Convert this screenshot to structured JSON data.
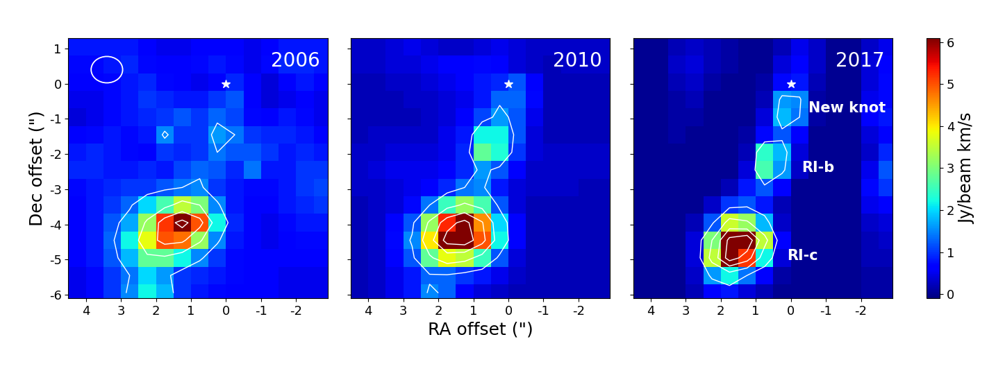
{
  "chart_data": [
    {
      "type": "heatmap",
      "title": "2006",
      "ylabel": "Dec offset (\")",
      "xlim": [
        4.5,
        -2.9
      ],
      "ylim": [
        -6.1,
        1.3
      ],
      "xticks": [
        4,
        3,
        2,
        1,
        0,
        -1,
        -2
      ],
      "yticks": [
        -6,
        -5,
        -4,
        -3,
        -2,
        -1,
        0,
        1
      ],
      "x": [
        4.25,
        3.75,
        3.25,
        2.75,
        2.25,
        1.75,
        1.25,
        0.75,
        0.25,
        -0.25,
        -0.75,
        -1.25,
        -1.75,
        -2.25,
        -2.75
      ],
      "y": [
        1.05,
        0.55,
        0.05,
        -0.45,
        -0.95,
        -1.45,
        -1.95,
        -2.45,
        -2.95,
        -3.45,
        -3.95,
        -4.45,
        -4.95,
        -5.45,
        -5.95
      ],
      "cells": [
        [
          0.8,
          0.8,
          0.8,
          0.8,
          0.6,
          0.5,
          0.5,
          0.6,
          0.6,
          0.6,
          0.5,
          0.6,
          0.8,
          0.8,
          0.8
        ],
        [
          0.7,
          0.7,
          0.8,
          0.9,
          0.7,
          0.6,
          0.6,
          0.7,
          0.8,
          0.7,
          0.5,
          0.7,
          0.9,
          0.9,
          0.8
        ],
        [
          0.6,
          0.6,
          0.7,
          0.8,
          0.9,
          0.7,
          0.6,
          0.5,
          0.6,
          0.9,
          0.6,
          0.4,
          0.6,
          0.8,
          0.6
        ],
        [
          0.5,
          0.5,
          0.7,
          0.8,
          1.0,
          0.9,
          0.8,
          0.8,
          1.0,
          1.2,
          0.6,
          0.4,
          0.5,
          0.6,
          0.5
        ],
        [
          0.4,
          0.5,
          0.7,
          0.8,
          0.9,
          1.0,
          1.2,
          1.0,
          1.3,
          1.1,
          0.7,
          0.6,
          0.8,
          0.7,
          0.5
        ],
        [
          0.6,
          0.7,
          0.8,
          0.7,
          0.8,
          1.5,
          1.0,
          1.0,
          1.6,
          1.4,
          1.0,
          0.9,
          0.9,
          0.8,
          0.6
        ],
        [
          0.8,
          0.9,
          0.8,
          0.7,
          0.6,
          1.0,
          0.9,
          1.0,
          1.4,
          1.2,
          1.2,
          1.0,
          0.8,
          0.9,
          0.8
        ],
        [
          0.9,
          0.9,
          0.8,
          0.8,
          0.9,
          0.8,
          1.1,
          1.3,
          1.2,
          0.9,
          1.4,
          0.8,
          0.8,
          1.0,
          1.0
        ],
        [
          0.7,
          0.8,
          0.9,
          1.0,
          1.0,
          1.2,
          1.4,
          1.5,
          1.0,
          0.8,
          0.7,
          0.7,
          0.8,
          1.0,
          1.1
        ],
        [
          0.6,
          0.8,
          1.0,
          1.3,
          2.0,
          2.6,
          3.5,
          3.0,
          1.5,
          0.8,
          0.6,
          0.6,
          0.8,
          0.9,
          1.0
        ],
        [
          0.6,
          0.8,
          1.2,
          1.7,
          3.2,
          5.2,
          6.2,
          5.0,
          2.2,
          0.9,
          0.6,
          0.5,
          0.7,
          0.8,
          0.8
        ],
        [
          0.6,
          0.8,
          1.3,
          2.2,
          3.8,
          5.0,
          4.8,
          3.2,
          1.5,
          0.8,
          0.6,
          0.5,
          0.6,
          0.7,
          0.7
        ],
        [
          0.6,
          0.8,
          1.2,
          1.8,
          2.8,
          2.8,
          2.2,
          1.5,
          1.0,
          0.7,
          0.6,
          0.6,
          0.6,
          0.6,
          0.6
        ],
        [
          0.5,
          0.7,
          1.0,
          1.4,
          2.0,
          1.6,
          1.0,
          0.9,
          0.8,
          0.7,
          0.6,
          0.6,
          0.5,
          0.5,
          0.5
        ],
        [
          0.5,
          0.7,
          1.0,
          1.5,
          2.2,
          1.8,
          1.0,
          0.8,
          0.7,
          0.6,
          0.6,
          0.6,
          0.5,
          0.5,
          0.5
        ]
      ],
      "contour_levels": [
        1.4,
        3,
        4.5,
        5.8
      ],
      "source_position": {
        "x": 0,
        "y": 0
      },
      "beam": {
        "x": 3.4,
        "y": 0.4,
        "width": 0.9,
        "height": 0.75
      }
    },
    {
      "type": "heatmap",
      "title": "2010",
      "xlabel": "RA offset (\")",
      "tick_labels": "x",
      "xlim": [
        4.5,
        -2.9
      ],
      "ylim": [
        -6.1,
        1.3
      ],
      "xticks": [
        4,
        3,
        2,
        1,
        0,
        -1,
        -2
      ],
      "yticks": [
        -6,
        -5,
        -4,
        -3,
        -2,
        -1,
        0,
        1
      ],
      "x": [
        4.25,
        3.75,
        3.25,
        2.75,
        2.25,
        1.75,
        1.25,
        0.75,
        0.25,
        -0.25,
        -0.75,
        -1.25,
        -1.75,
        -2.25,
        -2.75
      ],
      "y": [
        1.05,
        0.55,
        0.05,
        -0.45,
        -0.95,
        -1.45,
        -1.95,
        -2.45,
        -2.95,
        -3.45,
        -3.95,
        -4.45,
        -4.95,
        -5.45,
        -5.95
      ],
      "cells": [
        [
          0.3,
          0.3,
          0.4,
          0.5,
          0.4,
          0.3,
          0.3,
          0.4,
          0.5,
          0.4,
          0.3,
          0.3,
          0.3,
          0.3,
          0.3
        ],
        [
          0.3,
          0.3,
          0.4,
          0.4,
          0.5,
          0.6,
          0.6,
          0.7,
          0.6,
          0.4,
          0.3,
          0.2,
          0.3,
          0.3,
          0.3
        ],
        [
          0.2,
          0.2,
          0.3,
          0.3,
          0.4,
          0.5,
          0.6,
          0.8,
          0.9,
          1.2,
          0.6,
          0.2,
          0.2,
          0.2,
          0.2
        ],
        [
          0.2,
          0.2,
          0.2,
          0.3,
          0.3,
          0.4,
          0.5,
          0.8,
          1.3,
          1.3,
          0.7,
          0.2,
          0.2,
          0.2,
          0.2
        ],
        [
          0.2,
          0.2,
          0.2,
          0.2,
          0.3,
          0.4,
          0.6,
          1.1,
          1.6,
          1.2,
          0.5,
          0.2,
          0.2,
          0.2,
          0.2
        ],
        [
          0.2,
          0.3,
          0.3,
          0.3,
          0.3,
          0.5,
          0.8,
          2.2,
          2.2,
          1.2,
          0.4,
          0.2,
          0.2,
          0.2,
          0.2
        ],
        [
          0.3,
          0.3,
          0.4,
          0.4,
          0.4,
          0.5,
          0.9,
          2.8,
          2.3,
          1.0,
          0.4,
          0.3,
          0.3,
          0.3,
          0.3
        ],
        [
          0.3,
          0.4,
          0.5,
          0.5,
          0.5,
          0.6,
          0.9,
          1.6,
          1.2,
          0.6,
          0.3,
          0.3,
          0.3,
          0.3,
          0.3
        ],
        [
          0.3,
          0.3,
          0.4,
          0.5,
          0.6,
          0.9,
          1.4,
          1.5,
          0.8,
          0.4,
          0.3,
          0.3,
          0.3,
          0.2,
          0.2
        ],
        [
          0.2,
          0.3,
          0.4,
          0.7,
          1.4,
          2.5,
          3.2,
          2.6,
          1.2,
          0.4,
          0.2,
          0.2,
          0.2,
          0.2,
          0.2
        ],
        [
          0.2,
          0.3,
          0.6,
          1.2,
          3.2,
          5.3,
          6.2,
          4.6,
          2.0,
          0.6,
          0.2,
          0.2,
          0.2,
          0.2,
          0.2
        ],
        [
          0.2,
          0.3,
          0.7,
          1.5,
          4.0,
          6.3,
          6.6,
          5.0,
          2.2,
          0.6,
          0.2,
          0.2,
          0.2,
          0.2,
          0.2
        ],
        [
          0.2,
          0.3,
          0.6,
          1.2,
          2.8,
          3.8,
          3.5,
          2.5,
          1.2,
          0.4,
          0.2,
          0.2,
          0.2,
          0.2,
          0.2
        ],
        [
          0.2,
          0.3,
          0.5,
          0.8,
          1.3,
          1.3,
          1.0,
          0.8,
          0.5,
          0.3,
          0.2,
          0.2,
          0.2,
          0.2,
          0.2
        ],
        [
          0.2,
          0.3,
          0.5,
          0.8,
          1.5,
          1.3,
          0.6,
          0.4,
          0.3,
          0.2,
          0.2,
          0.2,
          0.2,
          0.2,
          0.2
        ]
      ],
      "contour_levels": [
        1.4,
        3,
        4.5,
        5.8
      ],
      "source_position": {
        "x": 0,
        "y": 0
      }
    },
    {
      "type": "heatmap",
      "title": "2017",
      "tick_labels": "x",
      "xlim": [
        4.5,
        -2.9
      ],
      "ylim": [
        -6.1,
        1.3
      ],
      "xticks": [
        4,
        3,
        2,
        1,
        0,
        -1,
        -2
      ],
      "yticks": [
        -6,
        -5,
        -4,
        -3,
        -2,
        -1,
        0,
        1
      ],
      "x": [
        4.25,
        3.75,
        3.25,
        2.75,
        2.25,
        1.75,
        1.25,
        0.75,
        0.25,
        -0.25,
        -0.75,
        -1.25,
        -1.75,
        -2.25,
        -2.75
      ],
      "y": [
        1.05,
        0.55,
        0.05,
        -0.45,
        -0.95,
        -1.45,
        -1.95,
        -2.45,
        -2.95,
        -3.45,
        -3.95,
        -4.45,
        -4.95,
        -5.45,
        -5.95
      ],
      "cells": [
        [
          0.0,
          0.0,
          0.2,
          0.3,
          0.2,
          0.1,
          0.0,
          0.0,
          0.2,
          0.5,
          0.3,
          0.0,
          0.0,
          0.3,
          0.5
        ],
        [
          0.0,
          0.0,
          0.3,
          0.4,
          0.2,
          0.1,
          0.0,
          0.0,
          0.4,
          0.6,
          0.3,
          0.0,
          0.0,
          0.4,
          0.6
        ],
        [
          0.0,
          0.0,
          0.2,
          0.3,
          0.1,
          0.0,
          0.0,
          0.1,
          0.7,
          0.8,
          0.2,
          0.0,
          0.0,
          0.4,
          0.7
        ],
        [
          0.0,
          0.0,
          0.1,
          0.2,
          0.0,
          0.0,
          0.0,
          0.2,
          1.6,
          1.5,
          0.1,
          0.0,
          0.0,
          0.5,
          0.7
        ],
        [
          0.0,
          0.0,
          0.1,
          0.1,
          0.0,
          0.0,
          0.0,
          0.4,
          1.8,
          1.4,
          0.1,
          0.0,
          0.0,
          0.6,
          0.8
        ],
        [
          0.0,
          0.0,
          0.1,
          0.0,
          0.0,
          0.0,
          0.1,
          0.7,
          1.2,
          0.6,
          0.0,
          0.0,
          0.0,
          0.4,
          0.6
        ],
        [
          0.0,
          0.0,
          0.0,
          0.0,
          0.0,
          0.0,
          0.2,
          2.4,
          1.8,
          0.4,
          0.0,
          0.0,
          0.0,
          0.3,
          0.9
        ],
        [
          0.0,
          0.0,
          0.0,
          0.0,
          0.0,
          0.0,
          0.4,
          2.6,
          1.6,
          0.3,
          0.0,
          0.0,
          0.0,
          0.5,
          1.2
        ],
        [
          0.0,
          0.0,
          0.0,
          0.0,
          0.0,
          0.2,
          0.8,
          1.2,
          0.6,
          0.0,
          0.0,
          0.0,
          0.0,
          0.7,
          1.0
        ],
        [
          0.0,
          0.0,
          0.0,
          0.0,
          0.3,
          1.0,
          1.2,
          0.8,
          0.2,
          0.0,
          0.0,
          0.0,
          0.0,
          0.5,
          0.6
        ],
        [
          0.0,
          0.0,
          0.0,
          0.2,
          1.2,
          3.6,
          3.2,
          1.8,
          0.3,
          0.0,
          0.0,
          0.0,
          0.0,
          0.3,
          0.4
        ],
        [
          0.0,
          0.0,
          0.0,
          0.4,
          3.0,
          6.2,
          6.8,
          3.5,
          0.6,
          0.0,
          0.0,
          0.0,
          0.0,
          0.2,
          0.3
        ],
        [
          0.0,
          0.0,
          0.0,
          0.4,
          3.5,
          6.5,
          5.2,
          2.2,
          0.4,
          0.0,
          0.0,
          0.0,
          0.0,
          0.2,
          0.2
        ],
        [
          0.0,
          0.0,
          0.0,
          0.3,
          1.6,
          2.2,
          1.4,
          0.6,
          0.1,
          0.0,
          0.0,
          0.0,
          0.0,
          0.1,
          0.1
        ],
        [
          0.0,
          0.0,
          0.0,
          0.2,
          0.6,
          0.8,
          0.4,
          0.2,
          0.0,
          0.0,
          0.0,
          0.0,
          0.0,
          0.1,
          0.1
        ]
      ],
      "contour_levels": [
        1.4,
        3,
        4.5,
        5.8
      ],
      "source_position": {
        "x": 0,
        "y": 0
      },
      "annotations": [
        {
          "text": "New knot",
          "x": -0.5,
          "y": -0.7
        },
        {
          "text": "RI-b",
          "x": -0.3,
          "y": -2.4
        },
        {
          "text": "RI-c",
          "x": 0.1,
          "y": -4.9
        }
      ],
      "colorbar": {
        "label": "Jy/beam km/s",
        "lim": [
          -0.1,
          6.1
        ],
        "ticks": [
          0,
          1,
          2,
          3,
          4,
          5,
          6
        ]
      }
    }
  ]
}
